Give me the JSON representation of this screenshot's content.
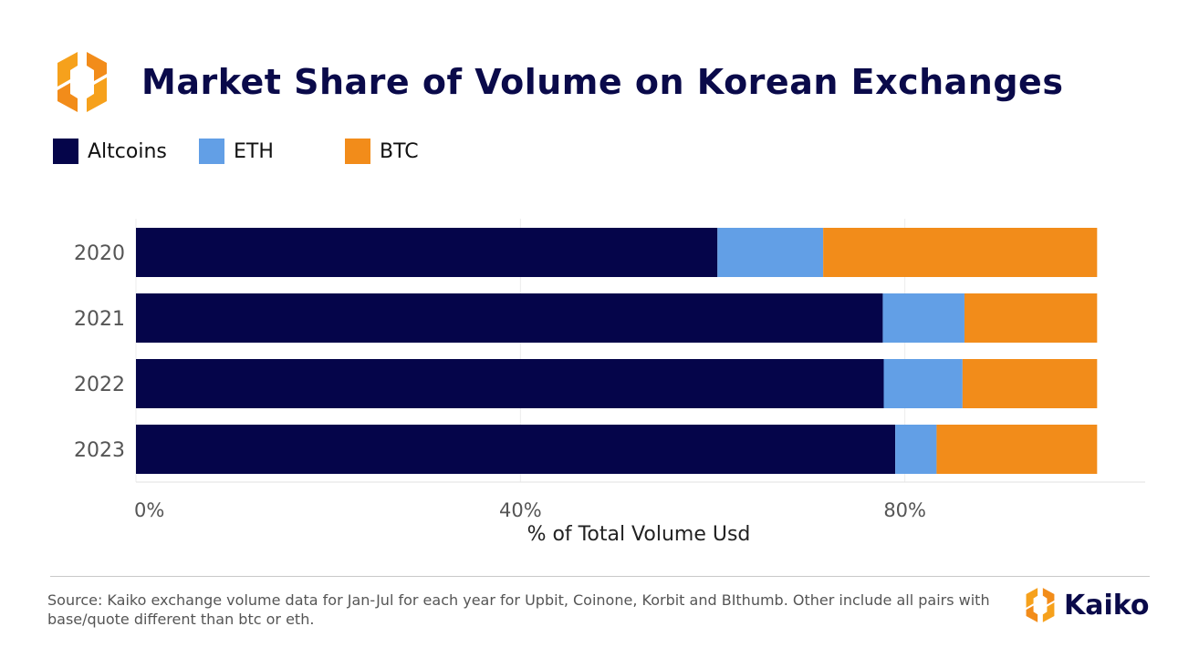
{
  "header": {
    "title": "Market Share of Volume on Korean Exchanges",
    "logo_icon": "kaiko-logo-icon"
  },
  "colors": {
    "altcoins": "#05054a",
    "eth": "#629fe6",
    "btc": "#f28c1a",
    "title": "#0a0a4a"
  },
  "chart_data": {
    "type": "bar",
    "orientation": "horizontal",
    "stacked": true,
    "categories": [
      "2020",
      "2021",
      "2022",
      "2023"
    ],
    "series": [
      {
        "name": "Altcoins",
        "color": "#05054a",
        "values": [
          60.5,
          77.7,
          77.8,
          79.0
        ]
      },
      {
        "name": "ETH",
        "color": "#629fe6",
        "values": [
          11.0,
          8.5,
          8.2,
          4.3
        ]
      },
      {
        "name": "BTC",
        "color": "#f28c1a",
        "values": [
          28.5,
          13.8,
          14.0,
          16.7
        ]
      }
    ],
    "xlabel": "% of Total Volume Usd",
    "ylabel": "",
    "xlim": [
      0,
      105
    ],
    "xticks": [
      0,
      40,
      80
    ],
    "xtick_labels": [
      "0%",
      "40%",
      "80%"
    ],
    "grid": "vertical",
    "legend_position": "top-left"
  },
  "footer": {
    "source": "Source: Kaiko exchange volume data  for Jan-Jul for each year for Upbit, Coinone, Korbit and BIthumb. Other include all pairs with base/quote different than btc or eth.",
    "brand": "Kaiko",
    "brand_icon": "kaiko-logo-icon"
  }
}
